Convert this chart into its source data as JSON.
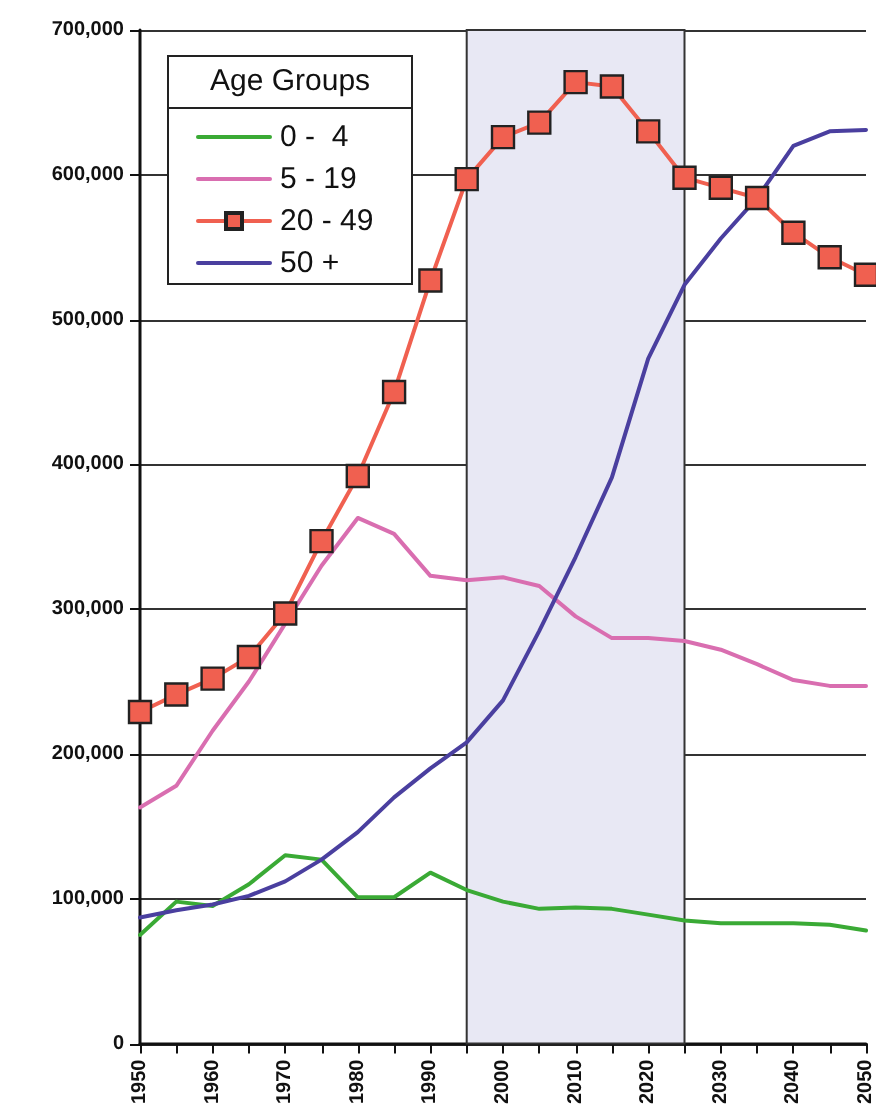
{
  "chart_data": {
    "type": "line",
    "legend_title": "Age Groups",
    "legend": "top left",
    "grid": "y",
    "x": [
      1950,
      1955,
      1960,
      1965,
      1970,
      1975,
      1980,
      1985,
      1990,
      1995,
      2000,
      2005,
      2010,
      2015,
      2020,
      2025,
      2030,
      2035,
      2040,
      2045,
      2050
    ],
    "xlim": [
      1950,
      2050
    ],
    "xticks": [
      1950,
      {
        "value": 1955,
        "label": null
      },
      1960,
      {
        "value": 1965,
        "label": null
      },
      1970,
      {
        "value": 1975,
        "label": null
      },
      1980,
      {
        "value": 1985,
        "label": null
      },
      1990,
      {
        "value": 1995,
        "label": null
      },
      2000,
      {
        "value": 2005,
        "label": null
      },
      2010,
      {
        "value": 2015,
        "label": null
      },
      2020,
      {
        "value": 2025,
        "label": null
      },
      2030,
      {
        "value": 2035,
        "label": null
      },
      2040,
      {
        "value": 2045,
        "label": null
      },
      2050
    ],
    "ylim": [
      0,
      700000
    ],
    "yticks": [
      {
        "value": 0,
        "label": "0"
      },
      {
        "value": 100000,
        "label": "100,000"
      },
      {
        "value": 200000,
        "label": "200,000"
      },
      {
        "value": 300000,
        "label": "300,000"
      },
      {
        "value": 400000,
        "label": "400,000"
      },
      {
        "value": 500000,
        "label": "500,000"
      },
      {
        "value": 600000,
        "label": "600,000"
      },
      {
        "value": 700000,
        "label": "700,000"
      }
    ],
    "bands": [
      {
        "axis": "x",
        "from": 1995,
        "to": 2025,
        "color": "#e8e8f4"
      }
    ],
    "series": [
      {
        "name": "0 -  4",
        "color": "#3aaa35",
        "marker": "none",
        "values": [
          75000,
          98000,
          95000,
          110000,
          130000,
          127000,
          101000,
          101000,
          118000,
          106000,
          98000,
          93000,
          94000,
          93000,
          89000,
          85000,
          83000,
          83000,
          83000,
          82000,
          78000
        ]
      },
      {
        "name": "5 - 19",
        "color": "#d96eb0",
        "marker": "none",
        "values": [
          163000,
          178000,
          216000,
          250000,
          290000,
          330000,
          363000,
          352000,
          323000,
          320000,
          322000,
          316000,
          295000,
          280000,
          280000,
          278000,
          272000,
          262000,
          251000,
          247000,
          247000
        ]
      },
      {
        "name": "20 - 49",
        "color": "#f06050",
        "marker": "square",
        "values": [
          229000,
          241000,
          252000,
          267000,
          297000,
          347000,
          392000,
          450000,
          527000,
          597000,
          626000,
          636000,
          664000,
          661000,
          630000,
          598000,
          591000,
          584000,
          560000,
          543000,
          531000
        ]
      },
      {
        "name": "50 +",
        "color": "#4a3f9f",
        "marker": "none",
        "values": [
          87000,
          92000,
          96000,
          102000,
          112000,
          127000,
          146000,
          170000,
          190000,
          208000,
          237000,
          285000,
          336000,
          391000,
          473000,
          524000,
          556000,
          584000,
          620000,
          630000,
          631000
        ]
      }
    ]
  }
}
